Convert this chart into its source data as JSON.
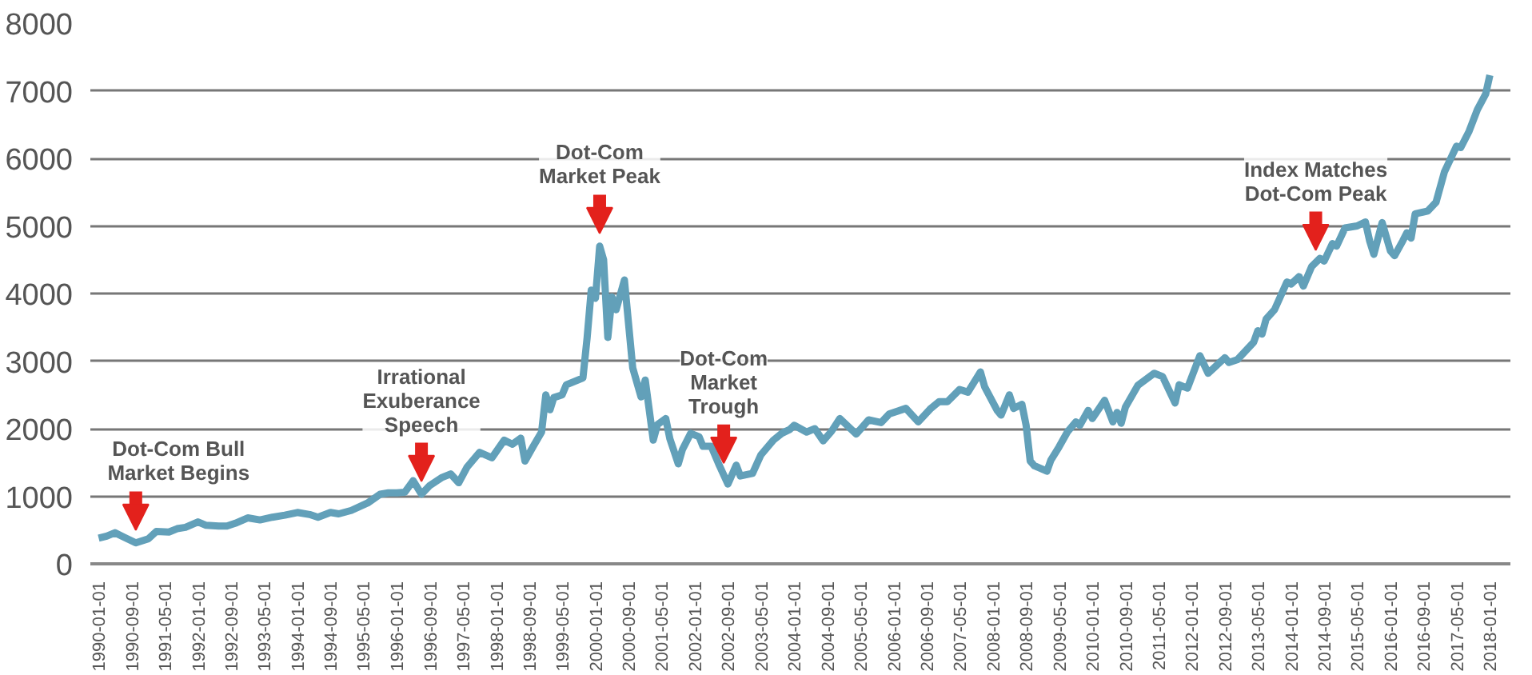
{
  "chart_data": {
    "type": "line",
    "x": [
      "1990-01",
      "1990-03",
      "1990-05",
      "1990-07",
      "1990-10",
      "1991-01",
      "1991-03",
      "1991-06",
      "1991-08",
      "1991-10",
      "1992-01",
      "1992-03",
      "1992-06",
      "1992-08",
      "1992-10",
      "1993-01",
      "1993-04",
      "1993-07",
      "1993-10",
      "1994-01",
      "1994-04",
      "1994-06",
      "1994-09",
      "1994-11",
      "1995-02",
      "1995-06",
      "1995-09",
      "1995-11",
      "1996-01",
      "1996-03",
      "1996-05",
      "1996-07",
      "1996-09",
      "1996-12",
      "1997-02",
      "1997-04",
      "1997-06",
      "1997-09",
      "1997-12",
      "1998-03",
      "1998-05",
      "1998-07",
      "1998-08",
      "1998-10",
      "1998-12",
      "1999-01",
      "1999-02",
      "1999-03",
      "1999-05",
      "1999-06",
      "1999-08",
      "1999-10",
      "1999-11",
      "1999-12",
      "2000-01",
      "2000-02",
      "2000-03",
      "2000-04",
      "2000-05",
      "2000-06",
      "2000-08",
      "2000-10",
      "2000-12",
      "2001-01",
      "2001-03",
      "2001-04",
      "2001-06",
      "2001-07",
      "2001-09",
      "2001-10",
      "2001-12",
      "2002-02",
      "2002-03",
      "2002-05",
      "2002-07",
      "2002-09",
      "2002-11",
      "2002-12",
      "2003-03",
      "2003-05",
      "2003-08",
      "2003-10",
      "2003-12",
      "2004-01",
      "2004-04",
      "2004-06",
      "2004-08",
      "2004-10",
      "2004-12",
      "2005-04",
      "2005-07",
      "2005-10",
      "2005-12",
      "2006-04",
      "2006-07",
      "2006-10",
      "2006-12",
      "2007-02",
      "2007-05",
      "2007-07",
      "2007-10",
      "2007-11",
      "2008-02",
      "2008-03",
      "2008-05",
      "2008-06",
      "2008-08",
      "2008-09",
      "2008-10",
      "2008-11",
      "2009-02",
      "2009-03",
      "2009-05",
      "2009-07",
      "2009-09",
      "2009-10",
      "2009-12",
      "2010-01",
      "2010-04",
      "2010-06",
      "2010-07",
      "2010-08",
      "2010-09",
      "2010-12",
      "2011-04",
      "2011-06",
      "2011-09",
      "2011-10",
      "2011-12",
      "2012-03",
      "2012-05",
      "2012-09",
      "2012-10",
      "2012-12",
      "2013-04",
      "2013-05",
      "2013-06",
      "2013-07",
      "2013-09",
      "2013-12",
      "2014-01",
      "2014-03",
      "2014-04",
      "2014-06",
      "2014-08",
      "2014-09",
      "2014-11",
      "2014-12",
      "2015-02",
      "2015-05",
      "2015-07",
      "2015-08",
      "2015-09",
      "2015-11",
      "2016-01",
      "2016-02",
      "2016-04",
      "2016-05",
      "2016-06",
      "2016-07",
      "2016-10",
      "2016-12",
      "2017-02",
      "2017-05",
      "2017-06",
      "2017-08",
      "2017-10",
      "2017-12",
      "2018-01"
    ],
    "series": [
      {
        "color": "#62a0b9",
        "values": [
          380,
          410,
          460,
          400,
          310,
          370,
          480,
          470,
          520,
          540,
          620,
          570,
          560,
          560,
          600,
          680,
          650,
          690,
          720,
          760,
          730,
          690,
          760,
          740,
          790,
          900,
          1030,
          1050,
          1050,
          1060,
          1230,
          1030,
          1160,
          1280,
          1330,
          1200,
          1430,
          1650,
          1570,
          1830,
          1770,
          1860,
          1520,
          1740,
          1950,
          2500,
          2280,
          2460,
          2500,
          2650,
          2700,
          2750,
          3350,
          4050,
          3930,
          4700,
          4500,
          3350,
          3950,
          3760,
          4200,
          2900,
          2470,
          2720,
          1830,
          2060,
          2150,
          1850,
          1480,
          1690,
          1930,
          1880,
          1740,
          1740,
          1450,
          1180,
          1460,
          1300,
          1340,
          1610,
          1830,
          1930,
          1990,
          2050,
          1950,
          2000,
          1820,
          1960,
          2150,
          1920,
          2130,
          2090,
          2220,
          2300,
          2100,
          2300,
          2400,
          2400,
          2580,
          2540,
          2840,
          2620,
          2270,
          2200,
          2500,
          2300,
          2360,
          2050,
          1520,
          1450,
          1370,
          1530,
          1730,
          1950,
          2100,
          2050,
          2270,
          2150,
          2420,
          2100,
          2240,
          2080,
          2320,
          2640,
          2820,
          2770,
          2380,
          2650,
          2600,
          3080,
          2820,
          3050,
          2980,
          3020,
          3280,
          3450,
          3400,
          3620,
          3760,
          4170,
          4140,
          4250,
          4110,
          4400,
          4520,
          4480,
          4740,
          4700,
          4970,
          5000,
          5060,
          4780,
          4580,
          5050,
          4630,
          4560,
          4780,
          4900,
          4820,
          5180,
          5220,
          5350,
          5800,
          6180,
          6160,
          6400,
          6720,
          6950,
          7230
        ]
      }
    ],
    "xlim": [
      "1989-11",
      "2018-06"
    ],
    "xticks": [
      "1990-01-01",
      "1990-09-01",
      "1991-05-01",
      "1992-01-01",
      "1992-09-01",
      "1993-05-01",
      "1994-01-01",
      "1994-09-01",
      "1995-05-01",
      "1996-01-01",
      "1996-09-01",
      "1997-05-01",
      "1998-01-01",
      "1998-09-01",
      "1999-05-01",
      "2000-01-01",
      "2000-09-01",
      "2001-05-01",
      "2002-01-01",
      "2002-09-01",
      "2003-05-01",
      "2004-01-01",
      "2004-09-01",
      "2005-05-01",
      "2006-01-01",
      "2006-09-01",
      "2007-05-01",
      "2008-01-01",
      "2008-09-01",
      "2009-05-01",
      "2010-01-01",
      "2010-09-01",
      "2011-05-01",
      "2012-01-01",
      "2012-09-01",
      "2013-05-01",
      "2014-01-01",
      "2014-09-01",
      "2015-05-01",
      "2016-01-01",
      "2016-09-01",
      "2017-05-01",
      "2018-01-01"
    ],
    "ylim": [
      0,
      8000
    ],
    "yticks": [
      0,
      1000,
      2000,
      3000,
      4000,
      5000,
      6000,
      7000,
      8000
    ],
    "grid": "y",
    "marker": "none",
    "line_style": "solid",
    "annotations": [
      {
        "text": "Dot-Com Bull\nMarket Begins",
        "x": "1990-10",
        "y": 310
      },
      {
        "text": "Irrational\nExuberance\nSpeech",
        "x": "1996-07",
        "y": 1030
      },
      {
        "text": "Dot-Com\nMarket Peak",
        "x": "2000-02",
        "y": 4700
      },
      {
        "text": "Dot-Com\nMarket\nTrough",
        "x": "2002-08",
        "y": 1300
      },
      {
        "text": "Index Matches\nDot-Com Peak",
        "x": "2014-07",
        "y": 4450
      }
    ]
  }
}
